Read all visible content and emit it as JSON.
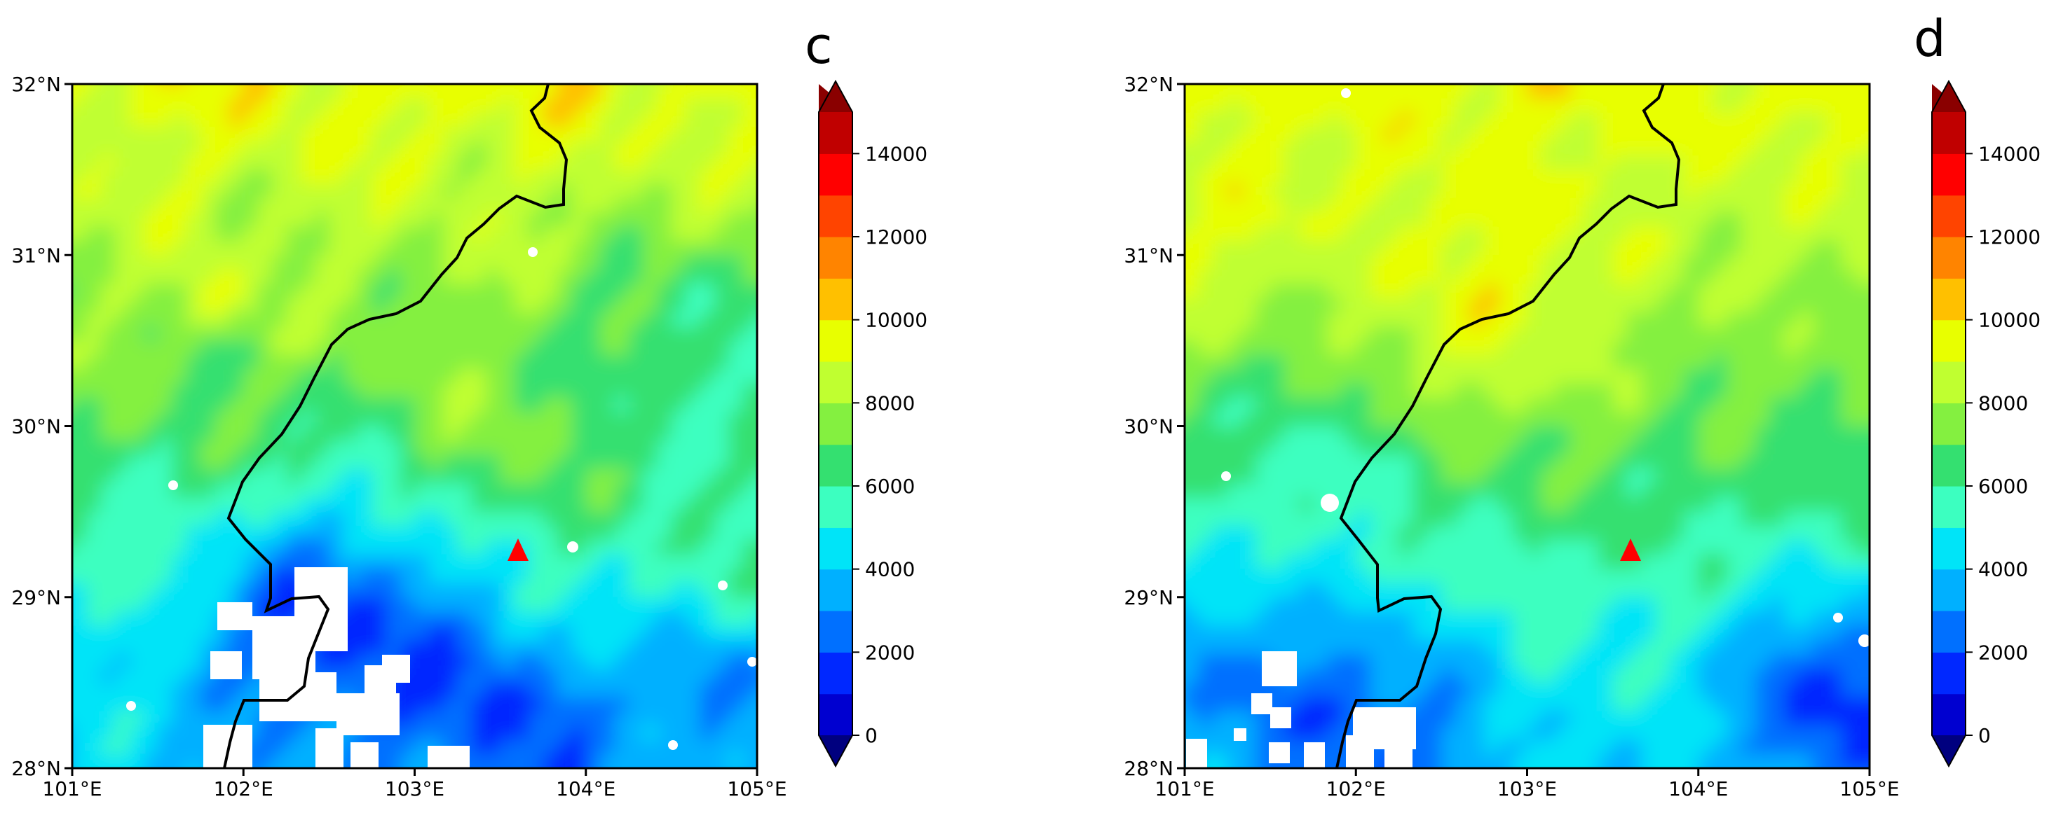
{
  "chart_data": [
    {
      "type": "heatmap",
      "panel_label": "c",
      "x_ticks": [
        "101°E",
        "102°E",
        "103°E",
        "104°E",
        "105°E"
      ],
      "y_ticks": [
        "28°N",
        "29°N",
        "30°N",
        "31°N",
        "32°N"
      ],
      "xlim": [
        101,
        105
      ],
      "ylim": [
        28,
        32
      ],
      "colorbar": {
        "ticks": [
          "0",
          "2000",
          "4000",
          "6000",
          "8000",
          "10000",
          "12000",
          "14000"
        ],
        "range": [
          0,
          15000
        ],
        "levels": 15
      },
      "marker": {
        "shape": "triangle",
        "lon": 103.6,
        "lat": 29.27,
        "color": "#ff0000"
      }
    },
    {
      "type": "heatmap",
      "panel_label": "d",
      "x_ticks": [
        "101°E",
        "102°E",
        "103°E",
        "104°E",
        "105°E"
      ],
      "y_ticks": [
        "28°N",
        "29°N",
        "30°N",
        "31°N",
        "32°N"
      ],
      "xlim": [
        101,
        105
      ],
      "ylim": [
        28,
        32
      ],
      "colorbar": {
        "ticks": [
          "0",
          "2000",
          "4000",
          "6000",
          "8000",
          "10000",
          "12000",
          "14000"
        ],
        "range": [
          0,
          15000
        ],
        "levels": 15
      },
      "marker": {
        "shape": "triangle",
        "lon": 103.6,
        "lat": 29.27,
        "color": "#ff0000"
      }
    }
  ],
  "colormap": [
    "#00007f",
    "#0000d0",
    "#0028ff",
    "#0070ff",
    "#00b0ff",
    "#00e4f8",
    "#3cffc0",
    "#34e070",
    "#84f040",
    "#c0ff30",
    "#e8ff00",
    "#ffc000",
    "#ff8400",
    "#ff4400",
    "#ff0000",
    "#c00000",
    "#8a0000"
  ]
}
